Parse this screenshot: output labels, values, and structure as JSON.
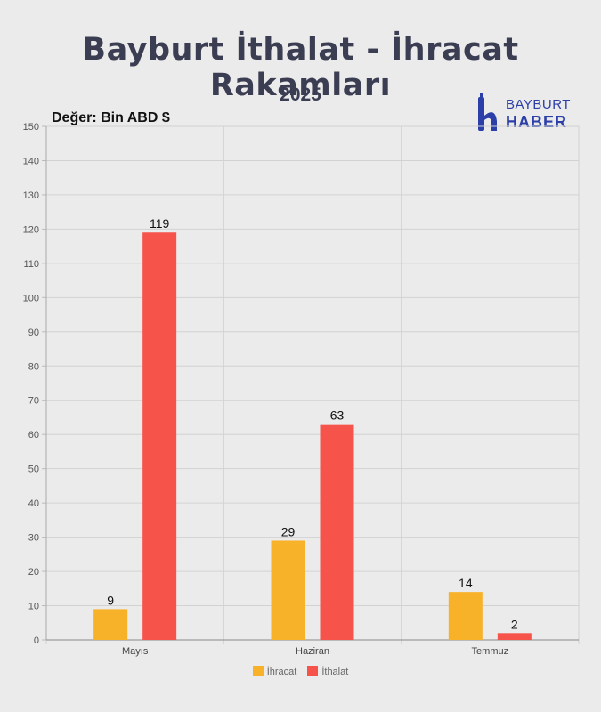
{
  "header": {
    "title": "Bayburt İthalat - İhracat Rakamları",
    "subtitle": "2025",
    "unit_label": "Değer: Bin ABD $"
  },
  "logo": {
    "top": "BAYBURT",
    "bottom": "HABER",
    "color": "#2c3fa8"
  },
  "chart_data": {
    "type": "bar",
    "categories": [
      "Mayıs",
      "Haziran",
      "Temmuz"
    ],
    "series": [
      {
        "name": "İhracat",
        "values": [
          9,
          29,
          14
        ],
        "color": "#f8b22a"
      },
      {
        "name": "İthalat",
        "values": [
          119,
          63,
          2
        ],
        "color": "#f6544a"
      }
    ],
    "ylim": [
      0,
      150
    ],
    "yticks": [
      0,
      10,
      20,
      30,
      40,
      50,
      60,
      70,
      80,
      90,
      100,
      110,
      120,
      130,
      140,
      150
    ],
    "grid": true,
    "legend": "bottom",
    "data_labels": true
  }
}
